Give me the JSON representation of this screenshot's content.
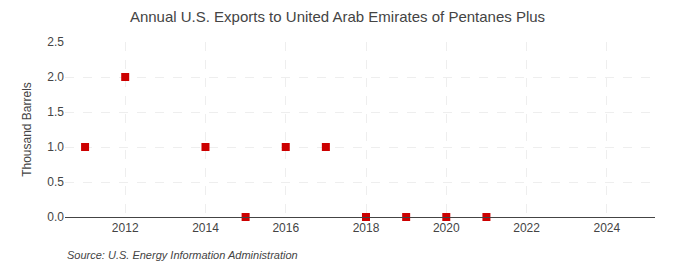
{
  "chart_data": {
    "type": "scatter",
    "title": "Annual U.S. Exports to United Arab Emirates of Pentanes Plus",
    "ylabel": "Thousand Barrels",
    "annotations": [
      "Source: U.S. Energy Information Administration"
    ],
    "x": [
      2011,
      2012,
      2014,
      2015,
      2016,
      2017,
      2018,
      2019,
      2020,
      2021
    ],
    "values": [
      1.0,
      2.0,
      1.0,
      0.0,
      1.0,
      1.0,
      0.0,
      0.0,
      0.0,
      0.0
    ],
    "color": "#cc0000",
    "marker": "square",
    "xlim": [
      2010.5,
      2025.2
    ],
    "xticks": [
      2012,
      2014,
      2016,
      2018,
      2020,
      2022,
      2024
    ],
    "ylim": [
      0.0,
      2.5
    ],
    "yticks": [
      {
        "value": 0,
        "label": "0.0"
      },
      0.5,
      {
        "value": 1,
        "label": "1.0"
      },
      1.5,
      {
        "value": 2,
        "label": "2.0"
      },
      2.5
    ],
    "grid": true
  }
}
